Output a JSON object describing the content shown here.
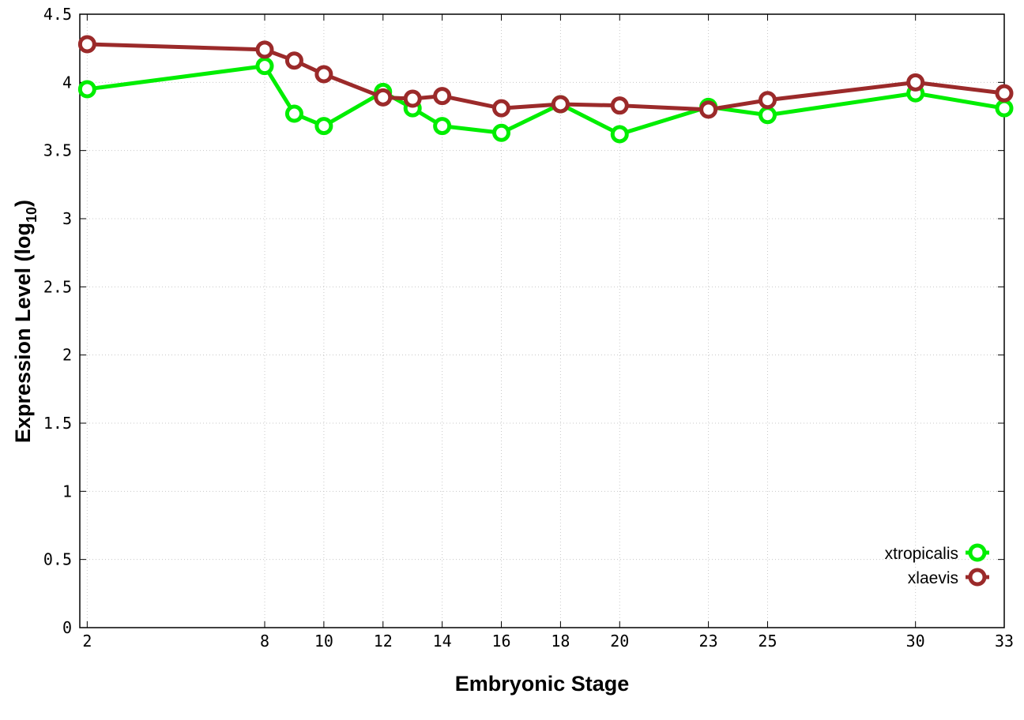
{
  "chart_data": {
    "type": "line",
    "xlabel": "Embryonic Stage",
    "ylabel_main": "Expression Level (log",
    "ylabel_sub": "10",
    "ylabel_close": ")",
    "xlim": [
      1.75,
      33
    ],
    "ylim": [
      0,
      4.5
    ],
    "x_ticks": [
      2,
      8,
      10,
      12,
      14,
      16,
      18,
      20,
      23,
      25,
      30,
      33
    ],
    "y_ticks": [
      0,
      0.5,
      1,
      1.5,
      2,
      2.5,
      3,
      3.5,
      4,
      4.5
    ],
    "y_tick_labels": [
      "0",
      "0.5",
      "1",
      "1.5",
      "2",
      "2.5",
      "3",
      "3.5",
      "4",
      "4.5"
    ],
    "grid": true,
    "legend_position": "bottom-right",
    "categories": [
      "2",
      "8",
      "9",
      "10",
      "12",
      "13",
      "14",
      "16",
      "18",
      "20",
      "23",
      "25",
      "30",
      "33"
    ],
    "series": [
      {
        "name": "xtropicalis",
        "color": "#00ee00",
        "x": [
          2,
          8,
          9,
          10,
          12,
          13,
          14,
          16,
          18,
          20,
          23,
          25,
          30,
          33
        ],
        "values": [
          3.95,
          4.12,
          3.77,
          3.68,
          3.93,
          3.81,
          3.68,
          3.63,
          3.84,
          3.62,
          3.82,
          3.76,
          3.92,
          3.81
        ]
      },
      {
        "name": "xlaevis",
        "color": "#9b2a2a",
        "x": [
          2,
          8,
          9,
          10,
          12,
          13,
          14,
          16,
          18,
          20,
          23,
          25,
          30,
          33
        ],
        "values": [
          4.28,
          4.24,
          4.16,
          4.06,
          3.89,
          3.88,
          3.9,
          3.81,
          3.84,
          3.83,
          3.8,
          3.87,
          4.0,
          3.92
        ]
      }
    ]
  }
}
